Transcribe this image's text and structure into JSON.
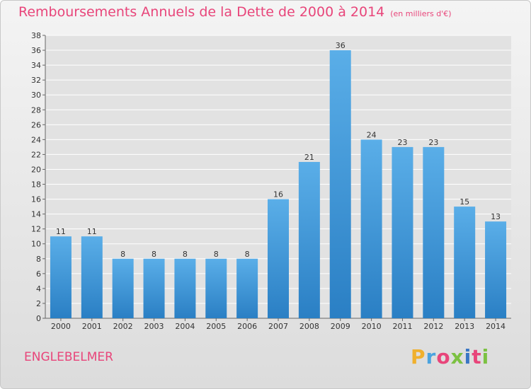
{
  "title": "Remboursements Annuels de la Dette de 2000 à 2014",
  "unit": "(en milliers d'€)",
  "place": "ENGLEBELMER",
  "logo": {
    "text": "Proxiti",
    "letters": [
      "P",
      "r",
      "o",
      "x",
      "i",
      "t",
      "i"
    ],
    "colors": [
      "#f0b02d",
      "#4aa3df",
      "#e8457a",
      "#7cc142",
      "#3a76c4",
      "#e8457a",
      "#7cc142"
    ]
  },
  "colors": {
    "title": "#e8457a",
    "bar_top": "#5aaee8",
    "bar_bottom": "#2a7fc4",
    "grid": "#ffffff"
  },
  "chart_data": {
    "type": "bar",
    "title": "Remboursements Annuels de la Dette de 2000 à 2014",
    "xlabel": "",
    "ylabel": "",
    "categories": [
      "2000",
      "2001",
      "2002",
      "2003",
      "2004",
      "2005",
      "2006",
      "2007",
      "2008",
      "2009",
      "2010",
      "2011",
      "2012",
      "2013",
      "2014"
    ],
    "values": [
      11,
      11,
      8,
      8,
      8,
      8,
      8,
      16,
      21,
      36,
      24,
      23,
      23,
      15,
      13
    ],
    "ylim": [
      0,
      38
    ],
    "yticks": [
      0,
      2,
      4,
      6,
      8,
      10,
      12,
      14,
      16,
      18,
      20,
      22,
      24,
      26,
      28,
      30,
      32,
      34,
      36,
      38
    ],
    "grid": true,
    "legend": "none"
  }
}
